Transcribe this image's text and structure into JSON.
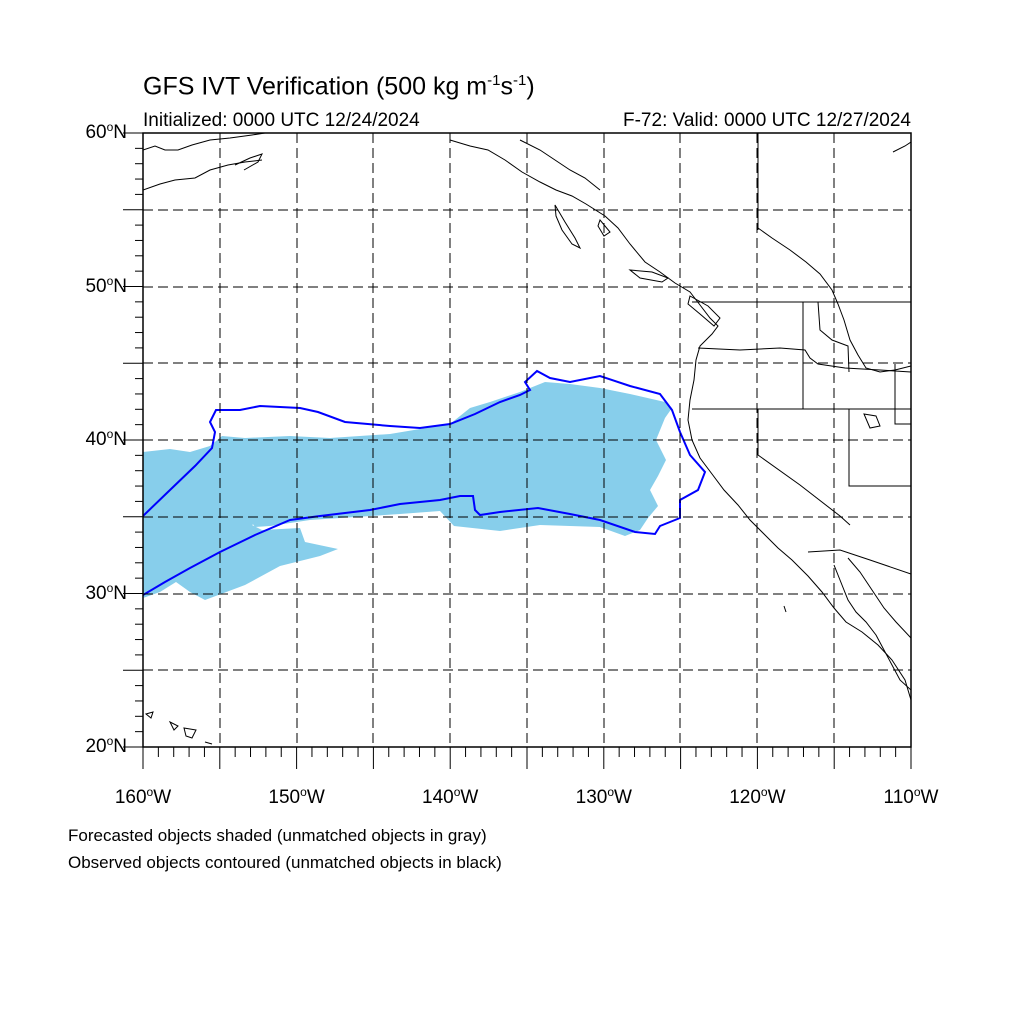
{
  "title": {
    "prefix": "GFS IVT Verification (500 kg m",
    "exp1": "-1",
    "mid": "s",
    "exp2": "-1",
    "suffix": ")"
  },
  "initialized": "Initialized: 0000 UTC 12/24/2024",
  "valid": "F-72: Valid: 0000 UTC 12/27/2024",
  "map": {
    "lon_range": [
      -160,
      -110
    ],
    "lat_range": [
      20,
      60
    ],
    "grid": "dashed every 5 degrees",
    "forecast_fill_color": "#87ceeb",
    "observed_contour_color": "#0000ff",
    "coastline_color": "#000000"
  },
  "lat_labels": [
    {
      "value": 60,
      "text": "60",
      "suffix": "N"
    },
    {
      "value": 50,
      "text": "50",
      "suffix": "N"
    },
    {
      "value": 40,
      "text": "40",
      "suffix": "N"
    },
    {
      "value": 30,
      "text": "30",
      "suffix": "N"
    },
    {
      "value": 20,
      "text": "20",
      "suffix": "N"
    }
  ],
  "lon_labels": [
    {
      "value": -160,
      "text": "160",
      "suffix": "W"
    },
    {
      "value": -150,
      "text": "150",
      "suffix": "W"
    },
    {
      "value": -140,
      "text": "140",
      "suffix": "W"
    },
    {
      "value": -130,
      "text": "130",
      "suffix": "W"
    },
    {
      "value": -120,
      "text": "120",
      "suffix": "W"
    },
    {
      "value": -110,
      "text": "110",
      "suffix": "W"
    }
  ],
  "caption_forecast": "Forecasted objects shaded (unmatched objects in gray)",
  "caption_observed": "Observed objects contoured (unmatched objects in black)"
}
